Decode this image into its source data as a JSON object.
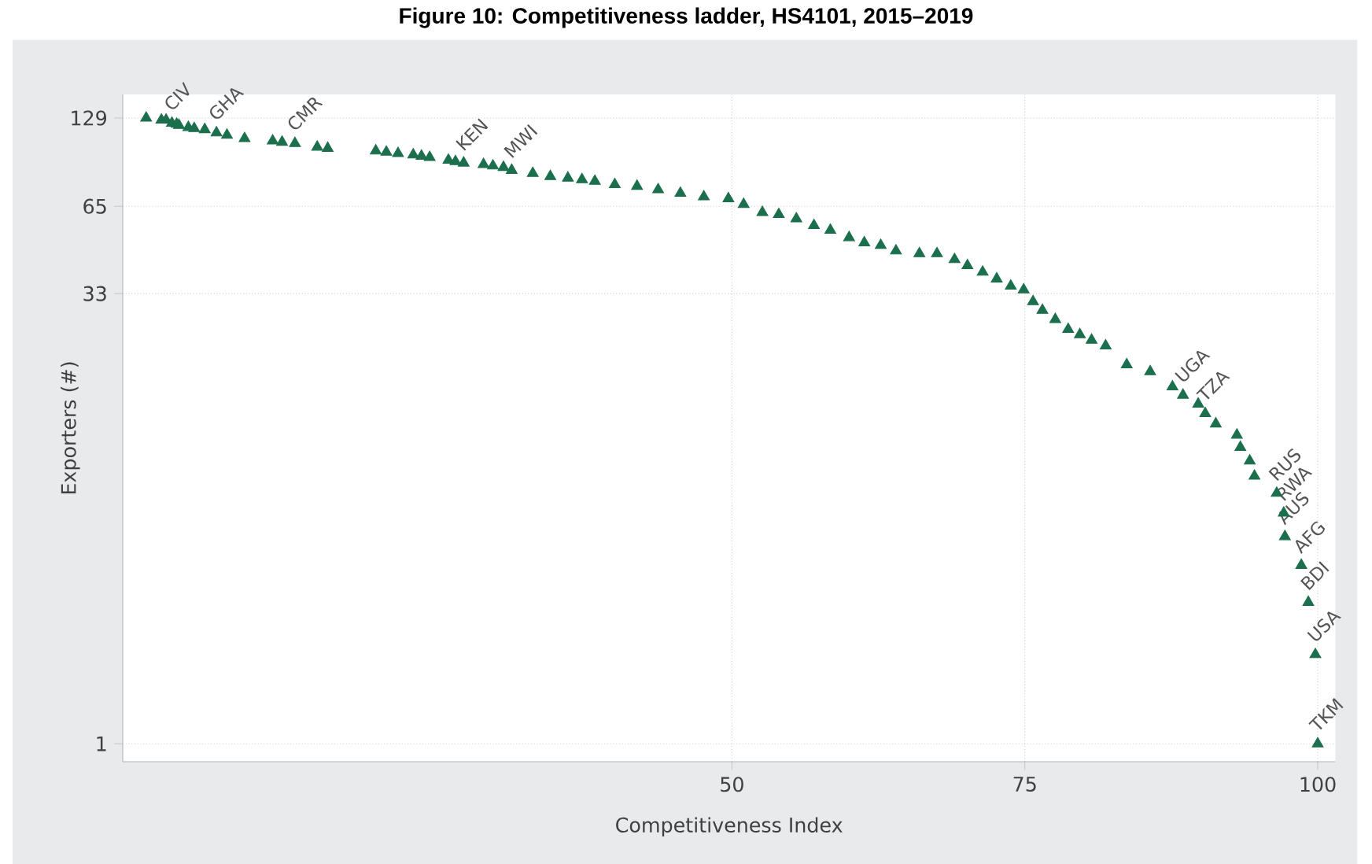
{
  "chart_data": {
    "type": "scatter",
    "title": "Figure 10:   Competitiveness ladder, HS4101, 2015–2019",
    "xlabel": "Competitiveness Index",
    "ylabel": "Exporters (#)",
    "x": [
      0,
      1.3,
      1.7,
      2.2,
      2.6,
      2.8,
      3.6,
      4.1,
      5.0,
      6.0,
      6.9,
      8.4,
      10.8,
      11.6,
      12.7,
      14.6,
      15.5,
      19.6,
      20.5,
      21.5,
      22.8,
      23.5,
      24.2,
      25.8,
      26.4,
      27.1,
      28.8,
      29.6,
      30.5,
      31.2,
      33,
      34.5,
      36,
      37.2,
      38.3,
      40,
      41.9,
      43.7,
      45.6,
      47.6,
      49.7,
      51,
      52.6,
      54,
      55.5,
      57,
      58.4,
      60,
      61.3,
      62.7,
      64.0,
      66,
      67.5,
      69,
      70.1,
      71.4,
      72.6,
      73.8,
      74.9,
      75.7,
      76.5,
      77.6,
      78.7,
      79.7,
      80.7,
      81.9,
      83.7,
      85.7,
      87.6,
      88.5,
      89.8,
      90.4,
      91.3,
      93.1,
      93.4,
      94.2,
      94.6,
      96.5,
      97.1,
      97.2,
      98.6,
      99.2,
      99.8,
      100
    ],
    "values": [
      129,
      127,
      127,
      124,
      123,
      122,
      120,
      119,
      118,
      115,
      113,
      110,
      108,
      107,
      106,
      103,
      102,
      100,
      99,
      98,
      97,
      96,
      95,
      93,
      92,
      91,
      90,
      89,
      88,
      86,
      84,
      82,
      81,
      80,
      79,
      77,
      76,
      74,
      72,
      70,
      69,
      66,
      62,
      61,
      59,
      56,
      54,
      51,
      49,
      48,
      46,
      45,
      45,
      43,
      41,
      39,
      37,
      35,
      34,
      31,
      29,
      27,
      25,
      24,
      23,
      22,
      19,
      18,
      16,
      15,
      14,
      13,
      12,
      11,
      10,
      9,
      8,
      7,
      6,
      5,
      4,
      3,
      2,
      1
    ],
    "color": "#1b6f4d",
    "marker": "triangle",
    "log": "y",
    "grid": true,
    "xlim": [
      -2,
      101.5
    ],
    "ylim": [
      0.87,
      155
    ],
    "xticks": [
      50,
      75,
      100
    ],
    "yticks": [
      1,
      33,
      65,
      129
    ],
    "annotations": [
      {
        "text": "CIV",
        "x": 2.2,
        "y": 124
      },
      {
        "text": "GHA",
        "x": 6.0,
        "y": 115
      },
      {
        "text": "CMR",
        "x": 12.7,
        "y": 106
      },
      {
        "text": "KEN",
        "x": 27.1,
        "y": 91
      },
      {
        "text": "MWI",
        "x": 31.2,
        "y": 86
      },
      {
        "text": "UGA",
        "x": 88.5,
        "y": 15
      },
      {
        "text": "TZA",
        "x": 90.4,
        "y": 13
      },
      {
        "text": "RUS",
        "x": 96.5,
        "y": 7
      },
      {
        "text": "RWA",
        "x": 97.1,
        "y": 6
      },
      {
        "text": "AUS",
        "x": 97.2,
        "y": 5
      },
      {
        "text": "AFG",
        "x": 98.6,
        "y": 4
      },
      {
        "text": "BDI",
        "x": 99.2,
        "y": 3
      },
      {
        "text": "USA",
        "x": 99.8,
        "y": 2
      },
      {
        "text": "TKM",
        "x": 100,
        "y": 1
      }
    ]
  }
}
